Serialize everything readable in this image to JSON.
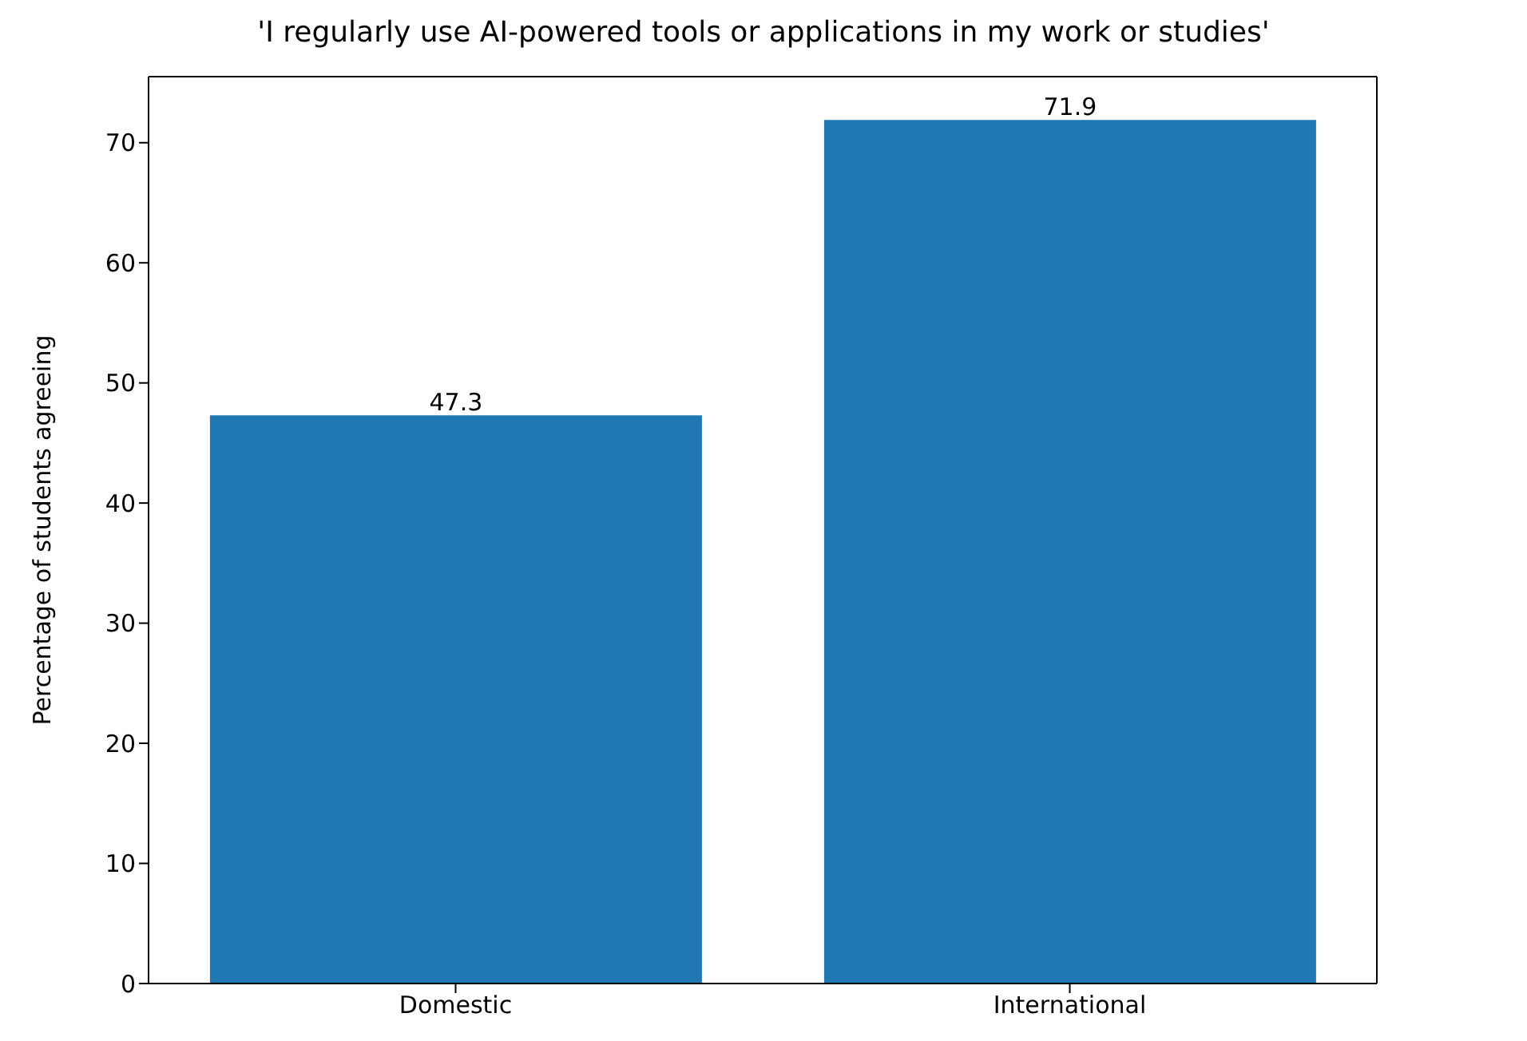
{
  "chart_data": {
    "type": "bar",
    "title": "'I regularly use AI-powered tools or applications in my work or studies'",
    "ylabel": "Percentage of students agreeing",
    "categories": [
      "Domestic",
      "International"
    ],
    "values": [
      47.3,
      71.9
    ],
    "color": "#1f77b4",
    "ylim": [
      0,
      75.5
    ],
    "yticks": [
      0,
      10,
      20,
      30,
      40,
      50,
      60,
      70
    ],
    "data_labels": true,
    "grid": false
  }
}
